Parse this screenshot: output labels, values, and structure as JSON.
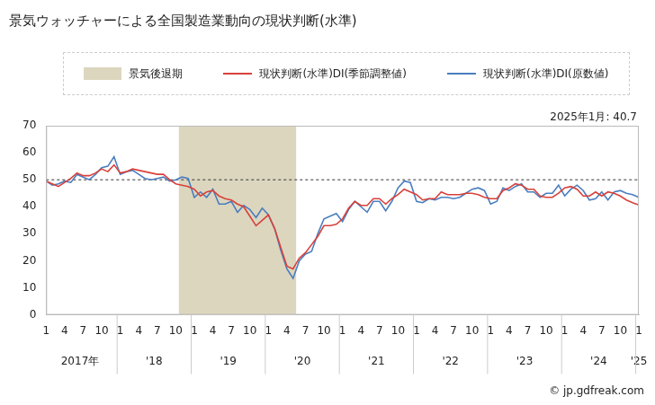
{
  "chart_data": {
    "type": "line",
    "title": "景気ウォッチャーによる全国製造業動向の現状判断(水準)",
    "note": "2025年1月: 40.7",
    "source": "© jp.gdfreak.com",
    "categories": [
      "1",
      null,
      null,
      "4",
      null,
      null,
      "7",
      null,
      null,
      "10",
      null,
      null,
      "1",
      null,
      null,
      "4",
      null,
      null,
      "7",
      null,
      null,
      "10",
      null,
      null,
      "1",
      null,
      null,
      "4",
      null,
      null,
      "7",
      null,
      null,
      "10",
      null,
      null,
      "1",
      null,
      null,
      "4",
      null,
      null,
      "7",
      null,
      null,
      "10",
      null,
      null,
      "1",
      null,
      null,
      "4",
      null,
      null,
      "7",
      null,
      null,
      "10",
      null,
      null,
      "1",
      null,
      null,
      "4",
      null,
      null,
      "7",
      null,
      null,
      "10",
      null,
      null,
      "1",
      null,
      null,
      "4",
      null,
      null,
      "7",
      null,
      null,
      "10",
      null,
      null,
      "1",
      null,
      null,
      "4",
      null,
      null,
      "7",
      null,
      null,
      "10",
      null,
      null,
      "1"
    ],
    "x_groups": [
      {
        "label": "2017年",
        "from": 0,
        "to": 11
      },
      {
        "label": "'18",
        "from": 12,
        "to": 23
      },
      {
        "label": "'19",
        "from": 24,
        "to": 35
      },
      {
        "label": "'20",
        "from": 36,
        "to": 47
      },
      {
        "label": "'21",
        "from": 48,
        "to": 59
      },
      {
        "label": "'22",
        "from": 60,
        "to": 71
      },
      {
        "label": "'23",
        "from": 72,
        "to": 83
      },
      {
        "label": "'24",
        "from": 84,
        "to": 95
      },
      {
        "label": "'25",
        "from": 96,
        "to": 96
      }
    ],
    "bands": [
      {
        "name": "景気後退期",
        "color": "#dcd6bf",
        "from": 22,
        "to": 40
      }
    ],
    "series": [
      {
        "name": "現状判断(水準)DI(季節調整値)",
        "color": "#d8413a",
        "values": [
          49.5,
          48.5,
          47.5,
          49,
          50.5,
          52.5,
          51.5,
          51.5,
          52.5,
          54,
          53,
          55.5,
          52.5,
          53,
          54,
          53.5,
          53,
          52.5,
          52,
          52,
          50,
          48.5,
          48,
          47.5,
          46.5,
          44,
          45.5,
          46,
          44,
          43,
          42.5,
          41,
          40,
          36.5,
          33,
          35,
          37,
          32,
          25,
          18,
          17,
          21,
          23,
          26,
          29,
          33,
          33,
          33.5,
          35.5,
          39.5,
          42,
          40.5,
          40.5,
          43,
          43,
          41,
          43,
          44.5,
          46.5,
          45.5,
          44.5,
          42.5,
          43,
          43,
          45.5,
          44.5,
          44.5,
          44.5,
          45,
          45,
          44.5,
          43.5,
          43,
          43,
          46,
          47,
          48.5,
          48,
          46.5,
          46.5,
          44,
          43.5,
          43.5,
          45,
          47,
          47.5,
          46.5,
          44,
          44,
          45.5,
          44,
          45.5,
          45,
          44,
          42.5,
          41.5,
          40.7
        ]
      },
      {
        "name": "現状判断(水準)DI(原数値)",
        "color": "#4a7ebf",
        "values": [
          49.5,
          48,
          48.5,
          49.5,
          49,
          52,
          51,
          50,
          52,
          54.5,
          55,
          58.5,
          52,
          53,
          53.5,
          52,
          50.5,
          50,
          50.5,
          51,
          49.5,
          50,
          51,
          50.5,
          43.5,
          45.5,
          43.5,
          46.5,
          41,
          41,
          42,
          38,
          40.5,
          39,
          36,
          39.5,
          37,
          32,
          24,
          17,
          13.5,
          20,
          22.5,
          23.5,
          30,
          35.5,
          36.5,
          37.5,
          34.5,
          39,
          42,
          40,
          38,
          42,
          42,
          38.5,
          42,
          47,
          49.5,
          49,
          42,
          41.5,
          43,
          42.5,
          43.5,
          43.5,
          43,
          43.5,
          45,
          46.5,
          47,
          46,
          41,
          42,
          47,
          46,
          47.5,
          48.5,
          45.5,
          45.5,
          43.5,
          45,
          45,
          48,
          44,
          46.5,
          48,
          46,
          42.5,
          43,
          45.5,
          42.5,
          45.5,
          46,
          45,
          44.5,
          43.5
        ]
      }
    ],
    "reference_line": {
      "value": 50,
      "line_style": "dashed"
    },
    "ylim": [
      0,
      70
    ],
    "yticks": [
      0,
      10,
      20,
      30,
      40,
      50,
      60,
      70
    ],
    "grid": false,
    "legend": "top"
  }
}
